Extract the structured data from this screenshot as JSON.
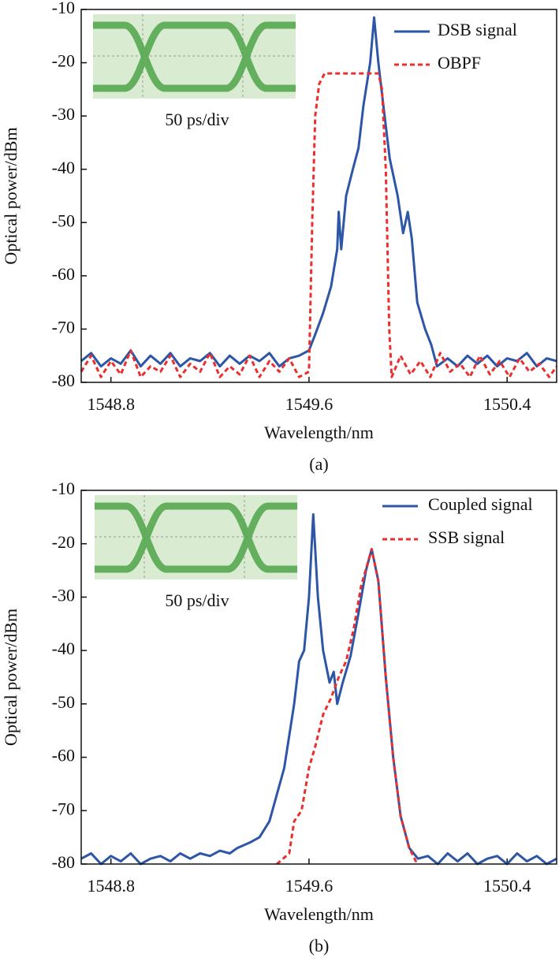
{
  "chart_data": [
    {
      "type": "line",
      "xlabel": "Wavelength/nm",
      "ylabel": "Optical power/dBm",
      "caption": "(a)",
      "annotation": "50 ps/div",
      "xlim": [
        1548.68,
        1550.6
      ],
      "ylim": [
        -80,
        -10
      ],
      "xticks": [
        1548.8,
        1549.6,
        1550.4
      ],
      "yticks": [
        -10,
        -20,
        -30,
        -40,
        -50,
        -60,
        -70,
        -80
      ],
      "legend": "upper right",
      "series": [
        {
          "name": "DSB signal",
          "color": "#2e56a6",
          "style": "solid",
          "x": [
            1548.68,
            1548.72,
            1548.76,
            1548.8,
            1548.84,
            1548.88,
            1548.92,
            1548.96,
            1549.0,
            1549.04,
            1549.08,
            1549.12,
            1549.16,
            1549.2,
            1549.24,
            1549.28,
            1549.32,
            1549.36,
            1549.4,
            1549.44,
            1549.48,
            1549.52,
            1549.56,
            1549.6,
            1549.625,
            1549.657,
            1549.689,
            1549.714,
            1549.72,
            1549.73,
            1549.75,
            1549.777,
            1549.8,
            1549.82,
            1549.847,
            1549.863,
            1549.88,
            1549.9,
            1549.926,
            1549.958,
            1549.98,
            1549.999,
            1550.015,
            1550.037,
            1550.069,
            1550.094,
            1550.117,
            1550.16,
            1550.2,
            1550.24,
            1550.28,
            1550.32,
            1550.36,
            1550.4,
            1550.44,
            1550.48,
            1550.52,
            1550.56,
            1550.6
          ],
          "values": [
            -76,
            -74.5,
            -77,
            -75.5,
            -76.5,
            -74,
            -77,
            -75,
            -76.5,
            -74.5,
            -77,
            -75.5,
            -76,
            -74.5,
            -77,
            -75,
            -76.5,
            -75,
            -76,
            -74.5,
            -77,
            -75.5,
            -75,
            -74,
            -71,
            -67,
            -62,
            -55,
            -48,
            -55,
            -45,
            -40,
            -36,
            -28,
            -20,
            -11.5,
            -20,
            -28,
            -38,
            -45,
            -52,
            -48,
            -53,
            -65,
            -70,
            -73,
            -77,
            -75.5,
            -77,
            -75,
            -76.5,
            -75,
            -77,
            -75.5,
            -76,
            -74.5,
            -77,
            -75.5,
            -76
          ]
        },
        {
          "name": "OBPF",
          "color": "#e8302e",
          "style": "dashed",
          "x": [
            1548.68,
            1548.72,
            1548.76,
            1548.8,
            1548.84,
            1548.88,
            1548.92,
            1548.96,
            1549.0,
            1549.04,
            1549.08,
            1549.12,
            1549.16,
            1549.2,
            1549.24,
            1549.28,
            1549.32,
            1549.36,
            1549.4,
            1549.44,
            1549.48,
            1549.52,
            1549.56,
            1549.6,
            1549.613,
            1549.625,
            1549.641,
            1549.663,
            1549.88,
            1549.895,
            1549.91,
            1549.924,
            1549.934,
            1549.97,
            1550.01,
            1550.05,
            1550.09,
            1550.13,
            1550.17,
            1550.21,
            1550.25,
            1550.29,
            1550.33,
            1550.37,
            1550.41,
            1550.45,
            1550.49,
            1550.53,
            1550.57,
            1550.6
          ],
          "values": [
            -78,
            -75,
            -79,
            -76,
            -78.5,
            -74,
            -79,
            -77,
            -78,
            -75,
            -79,
            -76.5,
            -78,
            -74.5,
            -79,
            -77,
            -78.5,
            -75,
            -79,
            -76,
            -78,
            -75.5,
            -79,
            -78,
            -50,
            -30,
            -24,
            -22,
            -22,
            -25,
            -40,
            -70,
            -79,
            -75,
            -78.5,
            -76,
            -79,
            -74.5,
            -78,
            -76.5,
            -79,
            -75,
            -78.5,
            -76,
            -79,
            -75.5,
            -78,
            -76.5,
            -79,
            -77
          ]
        }
      ]
    },
    {
      "type": "line",
      "xlabel": "Wavelength/nm",
      "ylabel": "Optical power/dBm",
      "caption": "(b)",
      "annotation": "50 ps/div",
      "xlim": [
        1548.68,
        1550.6
      ],
      "ylim": [
        -80,
        -10
      ],
      "xticks": [
        1548.8,
        1549.6,
        1550.4
      ],
      "yticks": [
        -10,
        -20,
        -30,
        -40,
        -50,
        -60,
        -70,
        -80
      ],
      "legend": "upper right",
      "series": [
        {
          "name": "Coupled signal",
          "color": "#2e56a6",
          "style": "solid",
          "x": [
            1548.68,
            1548.72,
            1548.76,
            1548.8,
            1548.84,
            1548.88,
            1548.92,
            1548.96,
            1549.0,
            1549.04,
            1549.08,
            1549.12,
            1549.16,
            1549.2,
            1549.24,
            1549.28,
            1549.31,
            1549.36,
            1549.4,
            1549.44,
            1549.5,
            1549.54,
            1549.56,
            1549.58,
            1549.6,
            1549.617,
            1549.636,
            1549.657,
            1549.683,
            1549.7,
            1549.714,
            1549.736,
            1549.768,
            1549.8,
            1549.83,
            1549.853,
            1549.88,
            1549.91,
            1549.94,
            1549.97,
            1550.005,
            1550.04,
            1550.08,
            1550.12,
            1550.16,
            1550.2,
            1550.24,
            1550.28,
            1550.32,
            1550.36,
            1550.4,
            1550.44,
            1550.48,
            1550.52,
            1550.56,
            1550.6
          ],
          "values": [
            -79,
            -78,
            -80,
            -78.5,
            -79.5,
            -78,
            -80,
            -79,
            -78.5,
            -79.5,
            -78,
            -79,
            -78,
            -78.5,
            -77.5,
            -78,
            -77,
            -76,
            -75,
            -72,
            -62,
            -50,
            -42,
            -40,
            -30,
            -14.5,
            -30,
            -40,
            -46,
            -44,
            -50,
            -46,
            -41,
            -33,
            -25,
            -21,
            -27,
            -45,
            -60,
            -71,
            -77,
            -79,
            -78.5,
            -80,
            -78,
            -79.5,
            -78,
            -80,
            -79,
            -78.5,
            -80,
            -78,
            -79.5,
            -78.5,
            -80,
            -79
          ]
        },
        {
          "name": "SSB signal",
          "color": "#e8302e",
          "style": "dashed",
          "x": [
            1549.47,
            1549.52,
            1549.54,
            1549.57,
            1549.6,
            1549.625,
            1549.657,
            1549.688,
            1549.72,
            1549.75,
            1549.78,
            1549.81,
            1549.853,
            1549.88,
            1549.91,
            1549.94,
            1549.97,
            1550.005,
            1550.037
          ],
          "values": [
            -80,
            -78,
            -72,
            -70,
            -62,
            -58,
            -52,
            -49,
            -45,
            -42,
            -36,
            -28,
            -21,
            -27,
            -45,
            -60,
            -71,
            -77,
            -80
          ]
        }
      ]
    }
  ]
}
